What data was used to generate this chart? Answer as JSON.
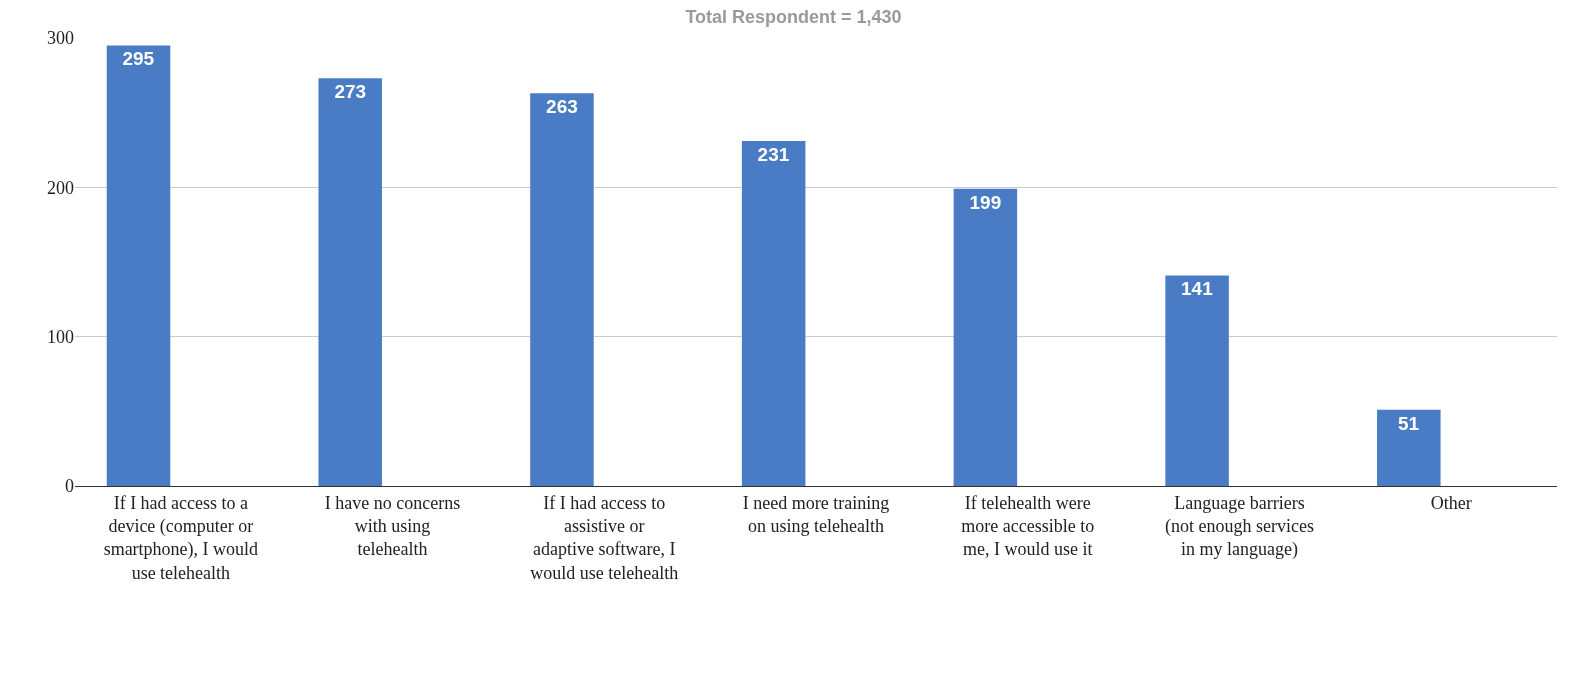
{
  "chart_data": {
    "type": "bar",
    "title": "Total Respondent = 1,430",
    "categories": [
      "If I had access to a device (computer or smartphone), I would use telehealth",
      "I have no concerns with using telehealth",
      "If I had access to assistive or adaptive software, I would use telehealth",
      "I need more training on using telehealth",
      "If telehealth were more accessible to me, I would use it",
      "Language barriers (not enough services in my language)",
      "Other"
    ],
    "values": [
      295,
      273,
      263,
      231,
      199,
      141,
      51
    ],
    "color": "#4a7cc5",
    "ylim": [
      0,
      300
    ],
    "yticks": [
      0,
      100,
      200,
      300
    ],
    "grid": "y",
    "data_labels": true,
    "legend": false
  }
}
